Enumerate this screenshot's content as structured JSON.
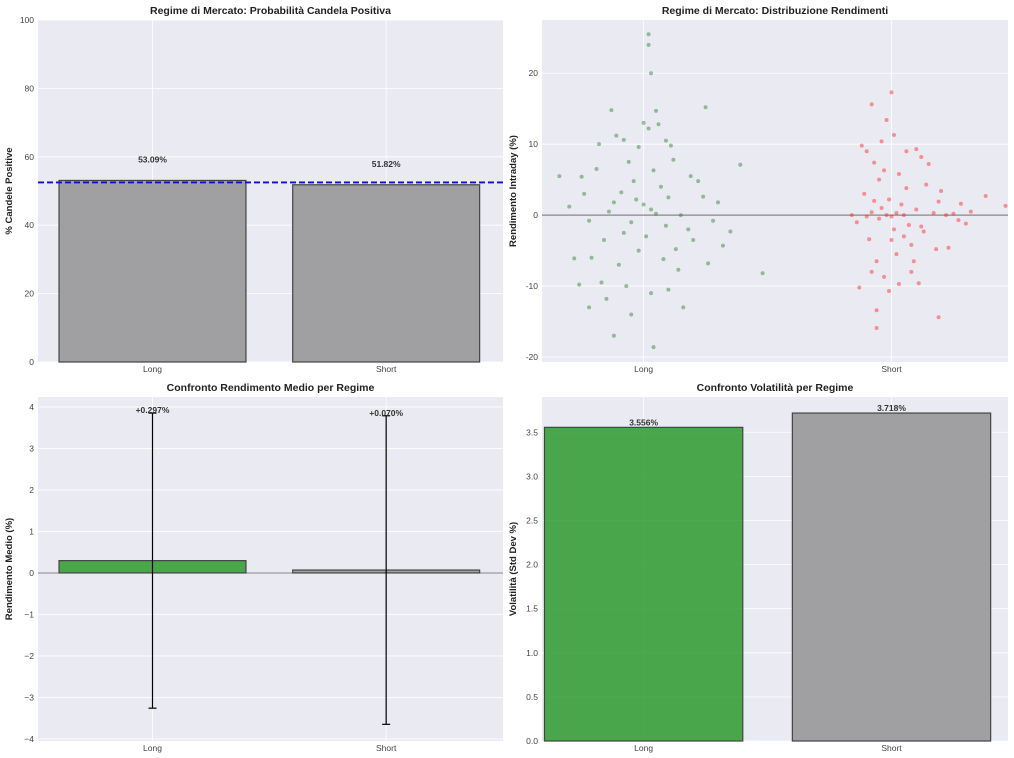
{
  "colors": {
    "background": "#eaeaf2",
    "gray_bar": "#a0a0a2",
    "green": "#2e9a2e",
    "long_points": "#2a7d2a",
    "short_points": "#ff2020",
    "mean_line": "#1010c8"
  },
  "chart_data": [
    {
      "type": "bar",
      "title": "Regime di Mercato: Probabilità Candela Positiva",
      "ylabel": "% Candele Positive",
      "categories": [
        "Long",
        "Short"
      ],
      "values": [
        53.09,
        51.82
      ],
      "data_labels": [
        "53.09%",
        "51.82%"
      ],
      "bar_colors": [
        "#a0a0a2",
        "#a0a0a2"
      ],
      "reference_line": {
        "value": 52.5,
        "style": "dashed",
        "color": "#1010c8"
      },
      "ylim": [
        0,
        100
      ],
      "yticks": [
        0,
        20,
        40,
        60,
        80,
        100
      ],
      "grid": true
    },
    {
      "type": "scatter",
      "title": "Regime di Mercato: Distribuzione Rendimenti",
      "ylabel": "Rendimento Intraday (%)",
      "categories": [
        "Long",
        "Short"
      ],
      "ylim": [
        -20.7,
        27.5
      ],
      "yticks": [
        -20,
        -10,
        0,
        10,
        20
      ],
      "reference_line": {
        "value": 0,
        "color": "#888888"
      },
      "grid": true,
      "series": [
        {
          "category": "Long",
          "color": "#2a7d2a",
          "points": [
            [
              -0.34,
              5.5
            ],
            [
              0.02,
              25.5
            ],
            [
              0.02,
              24.0
            ],
            [
              0.03,
              20.0
            ],
            [
              0.25,
              15.2
            ],
            [
              -0.13,
              14.8
            ],
            [
              0.05,
              14.7
            ],
            [
              -0.26,
              -9.8
            ],
            [
              -0.22,
              -13.0
            ],
            [
              -0.05,
              -14.0
            ],
            [
              -0.12,
              -17.0
            ],
            [
              0.04,
              -18.6
            ],
            [
              0.16,
              -13.0
            ],
            [
              0.48,
              -8.2
            ],
            [
              0.39,
              7.1
            ],
            [
              0.35,
              -2.3
            ],
            [
              -0.3,
              1.2
            ],
            [
              -0.18,
              10.0
            ],
            [
              -0.11,
              11.2
            ],
            [
              -0.08,
              10.6
            ],
            [
              0.0,
              13.0
            ],
            [
              0.02,
              12.2
            ],
            [
              0.06,
              12.8
            ],
            [
              0.09,
              10.5
            ],
            [
              0.1,
              -10.5
            ],
            [
              -0.15,
              -11.8
            ],
            [
              -0.07,
              -10.0
            ],
            [
              0.03,
              -11.0
            ],
            [
              0.14,
              -7.7
            ],
            [
              -0.21,
              -6.0
            ],
            [
              -0.28,
              -6.1
            ],
            [
              -0.25,
              5.4
            ],
            [
              -0.19,
              6.5
            ],
            [
              -0.06,
              7.5
            ],
            [
              0.04,
              6.3
            ],
            [
              0.12,
              7.8
            ],
            [
              0.22,
              4.8
            ],
            [
              0.28,
              -0.8
            ],
            [
              0.3,
              1.8
            ],
            [
              0.2,
              -3.5
            ],
            [
              -0.1,
              -7.0
            ],
            [
              -0.16,
              -3.5
            ],
            [
              -0.02,
              -5.0
            ],
            [
              0.08,
              -6.2
            ],
            [
              -0.09,
              3.2
            ],
            [
              0.0,
              1.5
            ],
            [
              0.05,
              0.2
            ],
            [
              -0.05,
              -1.0
            ],
            [
              0.1,
              2.5
            ],
            [
              -0.14,
              0.5
            ],
            [
              0.18,
              -2.0
            ],
            [
              -0.22,
              -0.8
            ],
            [
              0.07,
              4.0
            ],
            [
              -0.03,
              2.2
            ],
            [
              0.13,
              -4.8
            ],
            [
              -0.24,
              3.0
            ],
            [
              0.15,
              0.0
            ],
            [
              -0.08,
              -2.5
            ],
            [
              0.01,
              -3.0
            ],
            [
              0.24,
              2.6
            ],
            [
              0.32,
              -4.3
            ],
            [
              -0.17,
              -9.5
            ],
            [
              0.11,
              9.8
            ],
            [
              -0.02,
              9.6
            ],
            [
              0.19,
              5.5
            ],
            [
              -0.12,
              1.8
            ],
            [
              0.03,
              0.8
            ],
            [
              0.09,
              -1.5
            ],
            [
              -0.04,
              4.8
            ],
            [
              0.26,
              -6.8
            ]
          ]
        },
        {
          "category": "Short",
          "color": "#ff2020",
          "points": [
            [
              0.84,
              0.0
            ],
            [
              0.87,
              -10.2
            ],
            [
              0.94,
              -13.4
            ],
            [
              0.94,
              -15.9
            ],
            [
              0.92,
              -8.0
            ],
            [
              1.0,
              17.3
            ],
            [
              0.92,
              15.6
            ],
            [
              0.98,
              13.4
            ],
            [
              1.46,
              1.3
            ],
            [
              1.38,
              2.7
            ],
            [
              1.19,
              -14.4
            ],
            [
              1.1,
              9.3
            ],
            [
              1.01,
              11.3
            ],
            [
              0.96,
              10.4
            ],
            [
              0.9,
              9.0
            ],
            [
              0.88,
              9.8
            ],
            [
              1.06,
              9.0
            ],
            [
              1.11,
              -9.6
            ],
            [
              0.99,
              -10.7
            ],
            [
              1.03,
              -9.7
            ],
            [
              0.97,
              -8.7
            ],
            [
              1.08,
              -8.0
            ],
            [
              1.18,
              -4.8
            ],
            [
              1.23,
              -4.6
            ],
            [
              1.3,
              -1.2
            ],
            [
              1.28,
              1.6
            ],
            [
              1.2,
              3.4
            ],
            [
              1.15,
              7.2
            ],
            [
              1.12,
              8.2
            ],
            [
              0.93,
              7.4
            ],
            [
              0.95,
              5.0
            ],
            [
              0.89,
              3.0
            ],
            [
              0.86,
              -1.0
            ],
            [
              0.91,
              -3.4
            ],
            [
              0.94,
              -6.5
            ],
            [
              1.02,
              -5.5
            ],
            [
              1.05,
              -3.0
            ],
            [
              1.09,
              -6.5
            ],
            [
              1.13,
              -2.3
            ],
            [
              1.17,
              0.3
            ],
            [
              1.22,
              0.0
            ],
            [
              1.25,
              0.2
            ],
            [
              1.27,
              -0.7
            ],
            [
              1.32,
              0.5
            ],
            [
              0.98,
              0.0
            ],
            [
              1.0,
              -0.2
            ],
            [
              1.02,
              0.3
            ],
            [
              0.96,
              1.0
            ],
            [
              1.04,
              1.5
            ],
            [
              0.92,
              0.4
            ],
            [
              1.07,
              -1.4
            ],
            [
              0.99,
              2.2
            ],
            [
              1.01,
              -2.0
            ],
            [
              1.06,
              3.8
            ],
            [
              0.95,
              -0.5
            ],
            [
              1.1,
              0.8
            ],
            [
              0.9,
              -0.2
            ],
            [
              1.14,
              4.3
            ],
            [
              1.03,
              5.8
            ],
            [
              0.97,
              6.3
            ],
            [
              1.08,
              -4.2
            ],
            [
              1.0,
              -3.5
            ],
            [
              1.19,
              1.9
            ],
            [
              0.93,
              2.0
            ],
            [
              1.12,
              -1.6
            ],
            [
              1.05,
              0.0
            ]
          ]
        }
      ]
    },
    {
      "type": "bar",
      "title": "Confronto Rendimento Medio per Regime",
      "ylabel": "Rendimento Medio (%)",
      "categories": [
        "Long",
        "Short"
      ],
      "values": [
        0.297,
        0.07
      ],
      "error": [
        3.556,
        3.718
      ],
      "data_labels": [
        "+0.297%",
        "+0.070%"
      ],
      "bar_colors": [
        "#2e9a2e",
        "#a0a0a2"
      ],
      "reference_line": {
        "value": 0,
        "color": "#888888"
      },
      "ylim": [
        -4.05,
        4.24
      ],
      "yticks": [
        -4,
        -3,
        -2,
        -1,
        0,
        1,
        2,
        3,
        4
      ],
      "ytick_labels": [
        "−4",
        "−3",
        "−2",
        "−1",
        "0",
        "1",
        "2",
        "3",
        "4"
      ],
      "grid": true
    },
    {
      "type": "bar",
      "title": "Confronto Volatilità per Regime",
      "ylabel": "Volatilità (Std Dev %)",
      "categories": [
        "Long",
        "Short"
      ],
      "values": [
        3.556,
        3.718
      ],
      "data_labels": [
        "3.556%",
        "3.718%"
      ],
      "bar_colors": [
        "#2e9a2e",
        "#a0a0a2"
      ],
      "ylim": [
        0,
        3.9
      ],
      "yticks": [
        0.0,
        0.5,
        1.0,
        1.5,
        2.0,
        2.5,
        3.0,
        3.5
      ],
      "ytick_labels": [
        "0.0",
        "0.5",
        "1.0",
        "1.5",
        "2.0",
        "2.5",
        "3.0",
        "3.5"
      ],
      "grid": true
    }
  ]
}
